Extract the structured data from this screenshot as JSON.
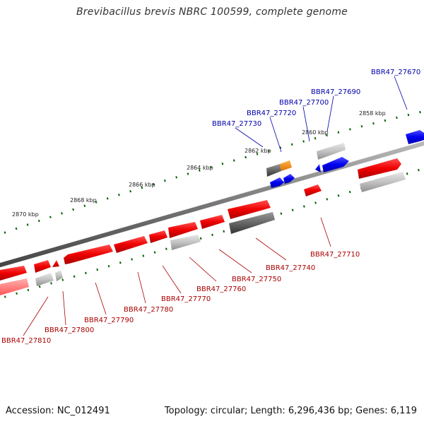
{
  "title": "Brevibacillus brevis NBRC 100599, complete genome",
  "footer": {
    "accession": "Accession: NC_012491",
    "summary": "Topology: circular; Length: 6,296,436 bp; Genes: 6,119"
  },
  "colors": {
    "forward_gene": "#ff0000",
    "reverse_gene": "#0000ff",
    "highlight_gene": "#ff8c00",
    "gray_gene": "#b0b0b0",
    "dark_gray_gene": "#666666",
    "ticks": "#006400",
    "backbone": "#888888"
  },
  "kbp_labels": [
    "2858 kbp",
    "2860 kbp",
    "2862 kbp",
    "2864 kbp",
    "2866 kbp",
    "2868 kbp",
    "2870 kbp"
  ],
  "gene_labels_top": [
    "BBR47_27670",
    "BBR47_27690",
    "BBR47_27700",
    "BBR47_27720",
    "BBR47_27730"
  ],
  "gene_labels_bottom": [
    "BBR47_27710",
    "BBR47_27740",
    "BBR47_27750",
    "BBR47_27760",
    "BBR47_27770",
    "BBR47_27780",
    "BBR47_27790",
    "BBR47_27800",
    "BBR47_27810"
  ]
}
